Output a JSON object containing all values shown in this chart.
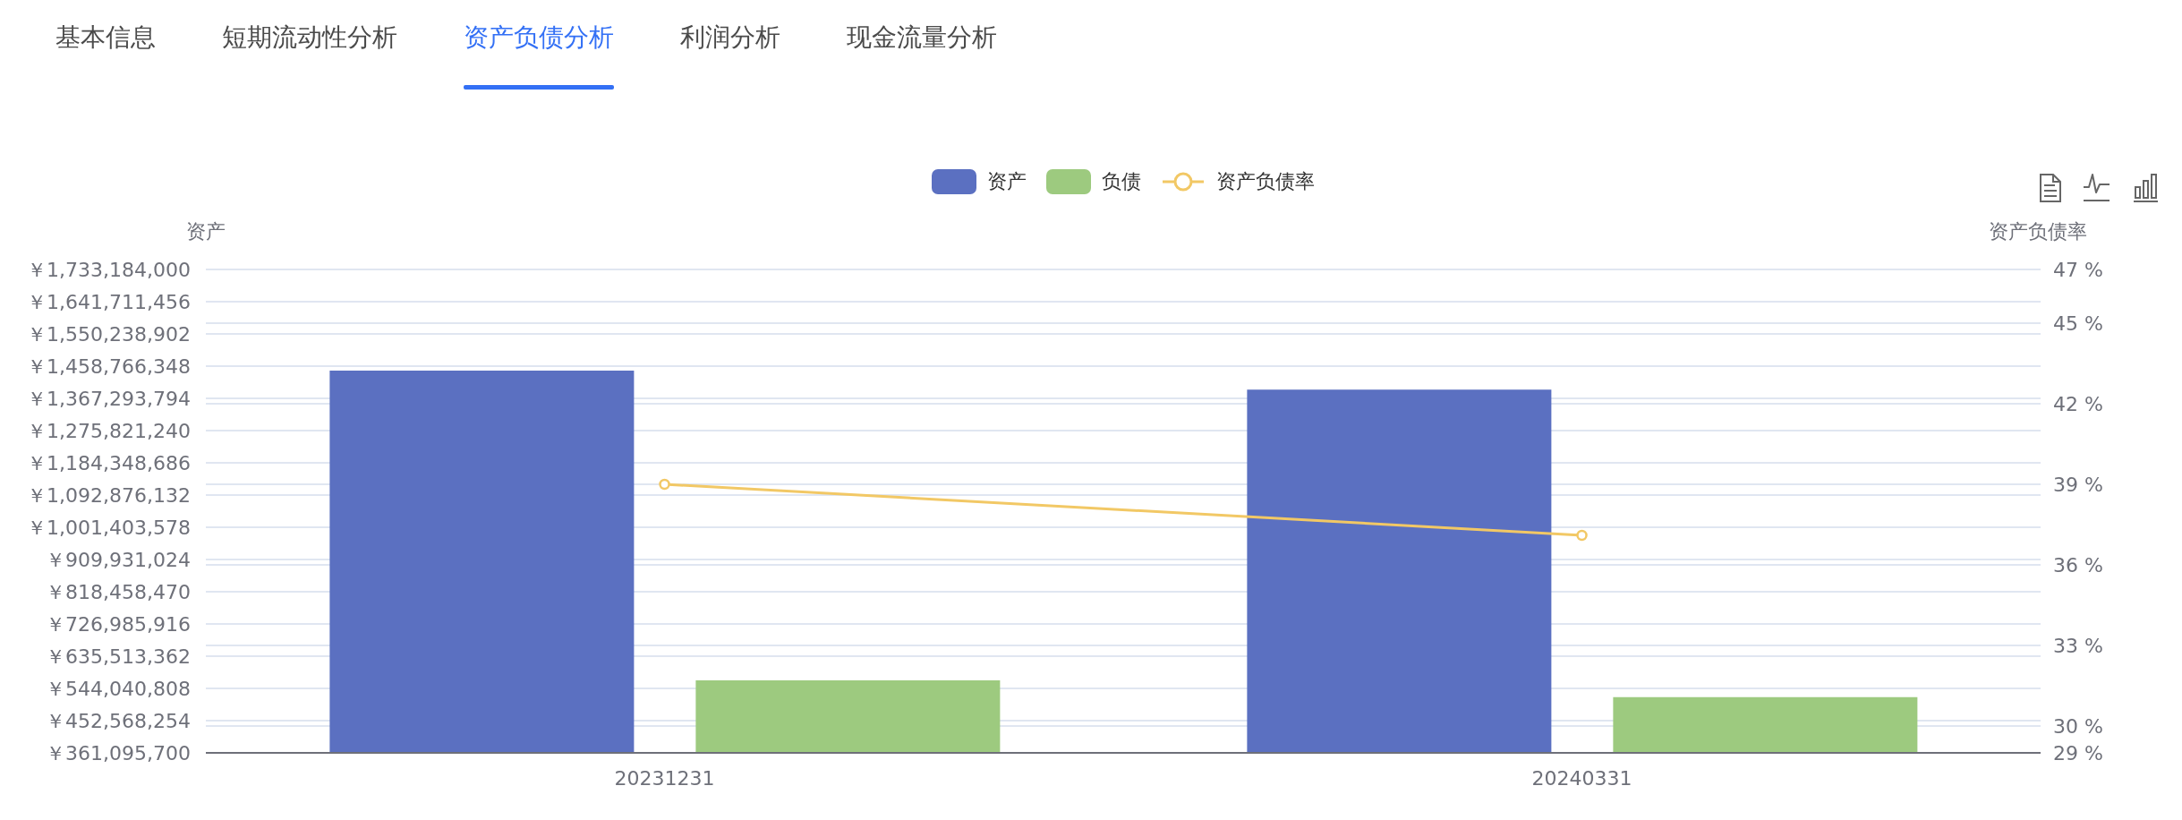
{
  "chart_data": {
    "type": "bar",
    "annotations": [
      "基本信息",
      "短期流动性分析",
      "资产负债分析",
      "利润分析",
      "现金流量分析"
    ],
    "categories": [
      "20231231",
      "20240331"
    ],
    "series": [
      {
        "name": "资产",
        "color": "#5b70c1",
        "values": [
          1446000000,
          1392000000
        ]
      },
      {
        "name": "负债",
        "color": "#9dca7f",
        "values": [
          567000000,
          519000000
        ]
      },
      {
        "name": "资产负债率",
        "type": "line",
        "axis": "y2",
        "color": "#f2c865",
        "values": [
          39.0,
          37.1
        ]
      }
    ],
    "ylabel": "资产",
    "y2label": "资产负债率",
    "ylim": [
      361095700,
      1733184000
    ],
    "yticks": [
      {
        "value": 361095700,
        "label": "￥361,095,700"
      },
      {
        "value": 452568254,
        "label": "￥452,568,254"
      },
      {
        "value": 544040808,
        "label": "￥544,040,808"
      },
      {
        "value": 635513362,
        "label": "￥635,513,362"
      },
      {
        "value": 726985916,
        "label": "￥726,985,916"
      },
      {
        "value": 818458470,
        "label": "￥818,458,470"
      },
      {
        "value": 909931024,
        "label": "￥909,931,024"
      },
      {
        "value": 1001403578,
        "label": "￥1,001,403,578"
      },
      {
        "value": 1092876132,
        "label": "￥1,092,876,132"
      },
      {
        "value": 1184348686,
        "label": "￥1,184,348,686"
      },
      {
        "value": 1275821240,
        "label": "￥1,275,821,240"
      },
      {
        "value": 1367293794,
        "label": "￥1,367,293,794"
      },
      {
        "value": 1458766348,
        "label": "￥1,458,766,348"
      },
      {
        "value": 1550238902,
        "label": "￥1,550,238,902"
      },
      {
        "value": 1641711456,
        "label": "￥1,641,711,456"
      },
      {
        "value": 1733184000,
        "label": "￥1,733,184,000"
      }
    ],
    "y2lim": [
      29,
      47
    ],
    "y2ticks": [
      {
        "value": 29,
        "label": "29 %"
      },
      {
        "value": 30,
        "label": "30 %"
      },
      {
        "value": 33,
        "label": "33 %"
      },
      {
        "value": 36,
        "label": "36 %"
      },
      {
        "value": 39,
        "label": "39 %"
      },
      {
        "value": 42,
        "label": "42 %"
      },
      {
        "value": 45,
        "label": "45 %"
      },
      {
        "value": 47,
        "label": "47 %"
      }
    ],
    "grid": "y",
    "legend": "top",
    "marker": "circle"
  }
}
